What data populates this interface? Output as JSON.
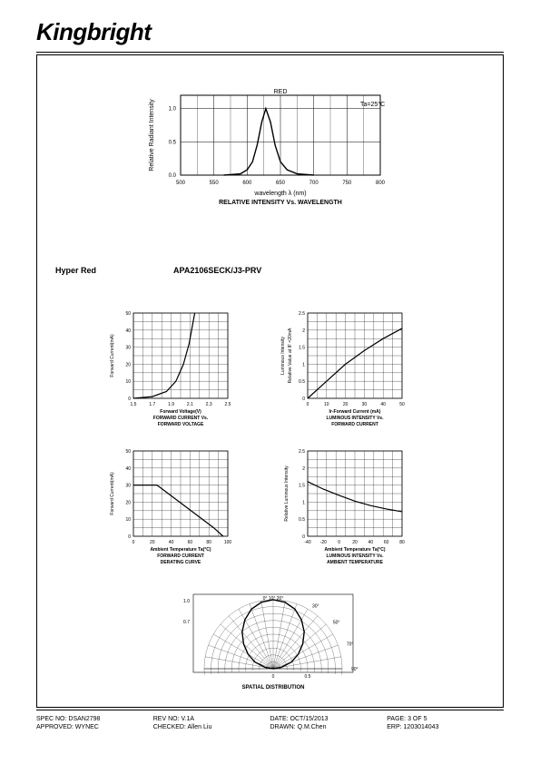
{
  "brand": "Kingbright",
  "section": {
    "colorName": "Hyper Red",
    "partNo": "APA2106SECK/J3-PRV"
  },
  "topChart": {
    "type": "line",
    "title1": "wavelength λ  (nm)",
    "title2": "RELATIVE INTENSITY Vs. WAVELENGTH",
    "ylabel": "Relative Radiant Intensity",
    "topLabel": "RED",
    "tempLabel": "Ta=25°C",
    "xlim": [
      500,
      800
    ],
    "xticks": [
      500,
      550,
      600,
      650,
      700,
      750,
      800
    ],
    "ylim": [
      0,
      1.2
    ],
    "yticks": [
      0,
      0.5,
      1.0
    ],
    "curve": [
      [
        565,
        0
      ],
      [
        590,
        0.02
      ],
      [
        600,
        0.08
      ],
      [
        608,
        0.2
      ],
      [
        615,
        0.45
      ],
      [
        622,
        0.8
      ],
      [
        628,
        1.0
      ],
      [
        635,
        0.8
      ],
      [
        642,
        0.45
      ],
      [
        650,
        0.2
      ],
      [
        660,
        0.08
      ],
      [
        675,
        0.02
      ],
      [
        700,
        0
      ]
    ],
    "grid_color": "#000000",
    "line_color": "#000000",
    "line_width": 1.2
  },
  "chart1": {
    "type": "line",
    "caption1": "Forward Voltage(V)",
    "caption2": "FORWARD CURRENT Vs.",
    "caption3": "FORWARD VOLTAGE",
    "ylabel": "Forward Current(mA)",
    "xlim": [
      1.5,
      2.5
    ],
    "xticks": [
      1.5,
      1.7,
      1.9,
      2.1,
      2.3,
      2.5
    ],
    "ylim": [
      0,
      50
    ],
    "yticks": [
      0,
      10,
      20,
      30,
      40,
      50
    ],
    "curve": [
      [
        1.5,
        0
      ],
      [
        1.7,
        1
      ],
      [
        1.85,
        4
      ],
      [
        1.95,
        10
      ],
      [
        2.03,
        20
      ],
      [
        2.09,
        32
      ],
      [
        2.13,
        44
      ],
      [
        2.15,
        50
      ]
    ],
    "grid_color": "#000000"
  },
  "chart2": {
    "type": "line",
    "caption1": "Ir-Forward Current (mA)",
    "caption2": "LUMINOUS INTENSITY Vs.",
    "caption3": "FORWARD CURRENT",
    "ylabel1": "Luminous Intensity",
    "ylabel2": "Relative Value at IF =20mA",
    "xlim": [
      0,
      50
    ],
    "xticks": [
      0,
      10,
      20,
      30,
      40,
      50
    ],
    "ylim": [
      0,
      2.5
    ],
    "yticks": [
      0,
      0.5,
      1.0,
      1.5,
      2.0,
      2.5
    ],
    "curve": [
      [
        0,
        0
      ],
      [
        10,
        0.5
      ],
      [
        20,
        1.0
      ],
      [
        30,
        1.4
      ],
      [
        40,
        1.75
      ],
      [
        50,
        2.05
      ]
    ],
    "grid_color": "#000000"
  },
  "chart3": {
    "type": "line",
    "caption1": "Ambient Temperature Ta(°C)",
    "caption2": "FORWARD CURRENT",
    "caption3": "DERATING CURVE",
    "ylabel": "Forward Current(mA)",
    "xlim": [
      0,
      100
    ],
    "xticks": [
      0,
      20,
      40,
      60,
      80,
      100
    ],
    "ylim": [
      0,
      50
    ],
    "yticks": [
      0,
      10,
      20,
      30,
      40,
      50
    ],
    "curve": [
      [
        0,
        30
      ],
      [
        25,
        30
      ],
      [
        85,
        5
      ],
      [
        95,
        0
      ]
    ],
    "grid_color": "#000000"
  },
  "chart4": {
    "type": "line",
    "caption1": "Ambient Temperature Ta(°C)",
    "caption2": "LUMINOUS INTENSITY Vs.",
    "caption3": "AMBIENT TEMPERATURE",
    "ylabel": "Relative Luminous Intensity",
    "xlim": [
      -40,
      80
    ],
    "xticks": [
      -40,
      -20,
      0,
      20,
      40,
      60,
      80
    ],
    "ylim": [
      0,
      2.5
    ],
    "yticks": [
      0,
      0.5,
      1.0,
      1.5,
      2.0,
      2.5
    ],
    "curve": [
      [
        -40,
        1.6
      ],
      [
        -20,
        1.38
      ],
      [
        0,
        1.2
      ],
      [
        20,
        1.03
      ],
      [
        40,
        0.9
      ],
      [
        60,
        0.8
      ],
      [
        80,
        0.72
      ]
    ],
    "grid_color": "#000000"
  },
  "polar": {
    "type": "polar",
    "title": "SPATIAL DISTRIBUTION",
    "radialTicks": [
      "1.0",
      "0.7"
    ],
    "bottomTicks": [
      "0",
      "0.5"
    ],
    "angleLabels": [
      "0°",
      "10°",
      "20°",
      "30°",
      "50°",
      "70°",
      "90°"
    ],
    "curve_angles_deg": [
      0,
      10,
      20,
      30,
      40,
      50,
      60,
      70,
      80,
      90
    ],
    "curve_radii": [
      1.0,
      0.98,
      0.92,
      0.82,
      0.7,
      0.56,
      0.42,
      0.28,
      0.12,
      0
    ]
  },
  "footer": {
    "specNo": "SPEC NO: DSAN2798",
    "revNo": "REV NO: V.1A",
    "date": "DATE: OCT/15/2013",
    "page": "PAGE: 3 OF 5",
    "approved": "APPROVED: WYNEC",
    "checked": "CHECKED: Allen Liu",
    "drawn": "DRAWN: Q.M.Chen",
    "erp": "ERP: 1203014043"
  }
}
